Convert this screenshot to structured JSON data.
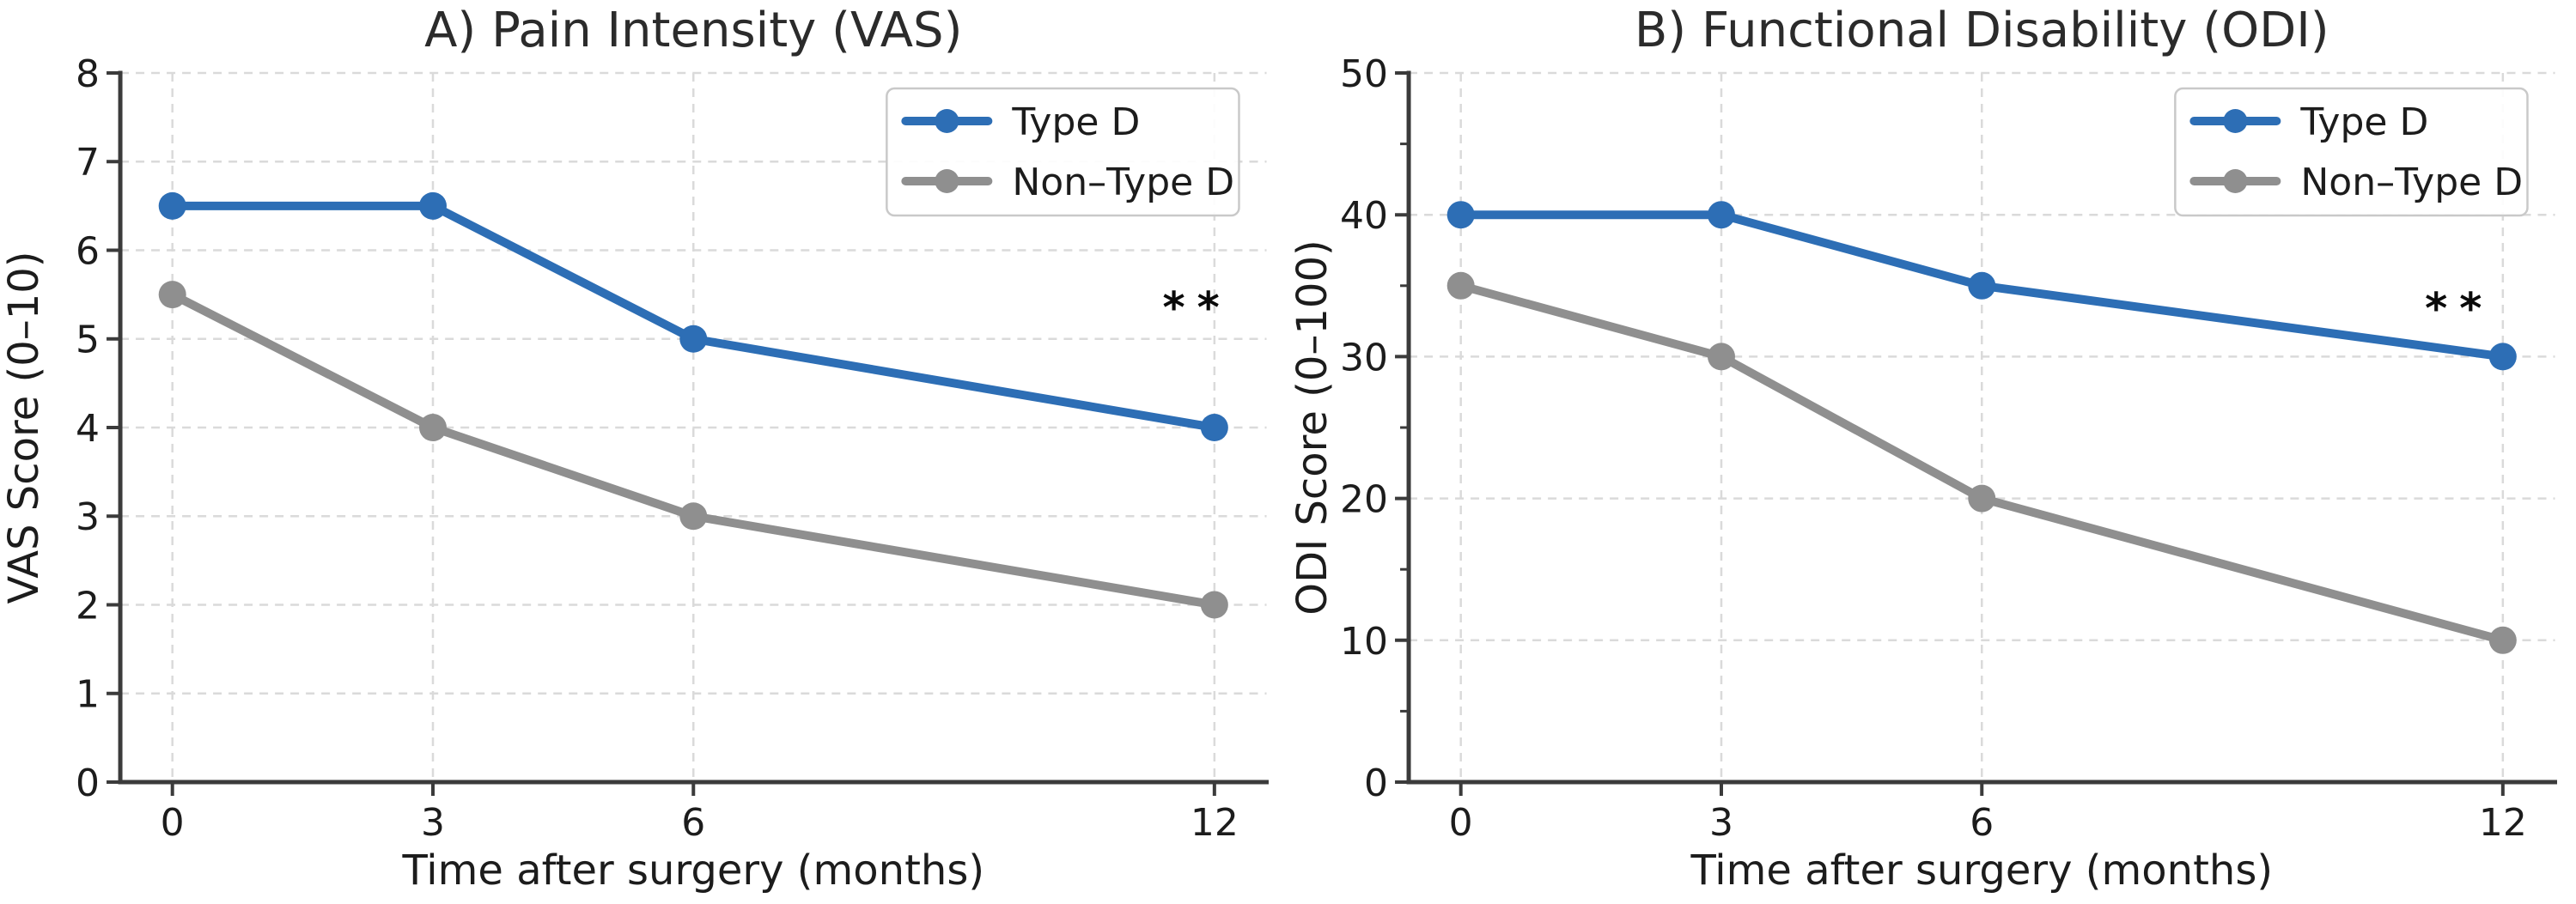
{
  "figure": {
    "background": "#ffffff",
    "panel_count": 2
  },
  "chart_data": [
    {
      "type": "line",
      "title": "A) Pain Intensity (VAS)",
      "xlabel": "Time after surgery (months)",
      "ylabel": "VAS Score (0–10)",
      "x": [
        0,
        3,
        6,
        12
      ],
      "xticks": [
        0,
        3,
        6,
        12
      ],
      "xlim": [
        -0.6,
        12.6
      ],
      "ylim": [
        0,
        8
      ],
      "yticks": [
        0,
        1,
        2,
        3,
        4,
        5,
        6,
        7,
        8
      ],
      "yticks_minor": [],
      "grid": true,
      "legend_position": "upper right",
      "series": [
        {
          "name": "Type D",
          "color": "#2d6eb5",
          "values": [
            6.5,
            6.5,
            5,
            4
          ]
        },
        {
          "name": "Non–Type D",
          "color": "#8f8f8f",
          "values": [
            5.5,
            4,
            3,
            2
          ]
        }
      ],
      "annotation": {
        "text": "**",
        "x": 11.8,
        "y": 5.45
      }
    },
    {
      "type": "line",
      "title": "B) Functional Disability (ODI)",
      "xlabel": "Time after surgery (months)",
      "ylabel": "ODI Score (0–100)",
      "x": [
        0,
        3,
        6,
        12
      ],
      "xticks": [
        0,
        3,
        6,
        12
      ],
      "xlim": [
        -0.6,
        12.6
      ],
      "ylim": [
        0,
        50
      ],
      "yticks": [
        0,
        10,
        20,
        30,
        40,
        50
      ],
      "yticks_minor": [
        5,
        15,
        25,
        35,
        45
      ],
      "grid": true,
      "legend_position": "upper right",
      "series": [
        {
          "name": "Type D",
          "color": "#2d6eb5",
          "values": [
            40,
            40,
            35,
            30
          ]
        },
        {
          "name": "Non–Type D",
          "color": "#8f8f8f",
          "values": [
            35,
            30,
            20,
            10
          ]
        }
      ],
      "annotation": {
        "text": "**",
        "x": 11.5,
        "y": 34
      }
    }
  ]
}
